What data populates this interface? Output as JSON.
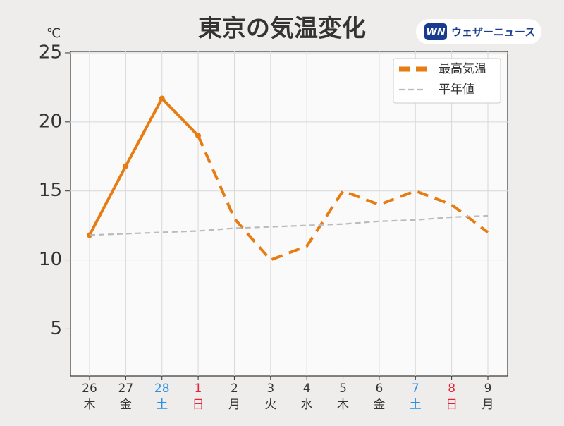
{
  "chart_data": {
    "type": "line",
    "title": "東京の気温変化",
    "brand": "ウェザーニュース",
    "brand_badge": "WN",
    "y_unit": "℃",
    "categories": [
      "26",
      "27",
      "28",
      "1",
      "2",
      "3",
      "4",
      "5",
      "6",
      "7",
      "8",
      "9"
    ],
    "weekdays": [
      "木",
      "金",
      "土",
      "日",
      "月",
      "火",
      "水",
      "木",
      "金",
      "土",
      "日",
      "月"
    ],
    "category_colors": [
      "#333333",
      "#333333",
      "#2a8fe0",
      "#e0263a",
      "#333333",
      "#333333",
      "#333333",
      "#333333",
      "#333333",
      "#2a8fe0",
      "#e0263a",
      "#333333"
    ],
    "series": [
      {
        "name": "最高気温",
        "color": "#e67c12",
        "values": [
          11.8,
          16.8,
          21.7,
          19.0,
          13.0,
          10.0,
          11.0,
          15.0,
          14.0,
          15.0,
          14.0,
          12.0
        ],
        "dashed_from_index": 3
      },
      {
        "name": "平年値",
        "color": "#bbbbbb",
        "values": [
          11.8,
          11.9,
          12.0,
          12.1,
          12.3,
          12.4,
          12.5,
          12.6,
          12.8,
          12.9,
          13.1,
          13.2
        ],
        "dashed_from_index": 0
      }
    ],
    "ylim": [
      1.6,
      25.1
    ],
    "yticks": [
      5,
      10,
      15,
      20,
      25
    ],
    "grid": true,
    "legend": "upper right"
  }
}
